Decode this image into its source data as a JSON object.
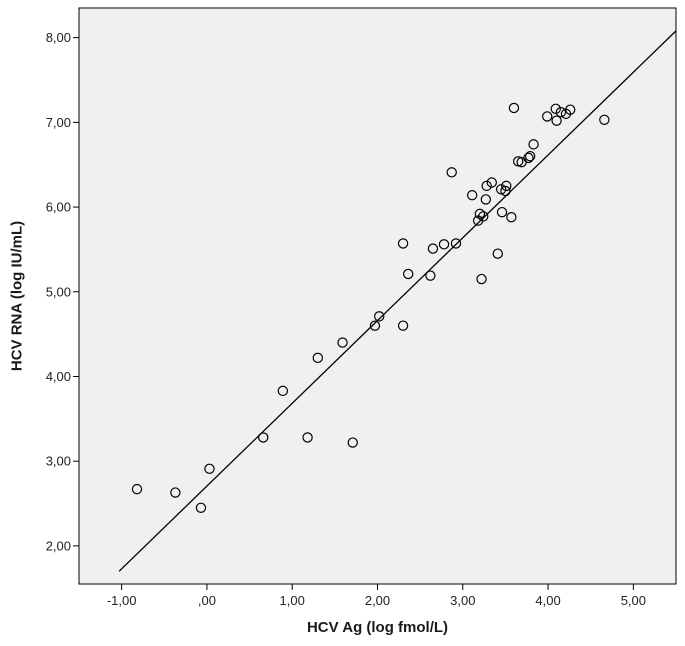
{
  "chart_data": {
    "type": "scatter",
    "title": "",
    "xlabel": "HCV Ag (log fmol/L)",
    "ylabel": "HCV RNA (log IU/mL)",
    "xlim": [
      -1.5,
      5.5
    ],
    "ylim": [
      1.55,
      8.35
    ],
    "xticks": [
      -1,
      0,
      1,
      2,
      3,
      4,
      5
    ],
    "xtick_labels": [
      "-1,00",
      ",00",
      "1,00",
      "2,00",
      "3,00",
      "4,00",
      "5,00"
    ],
    "yticks": [
      2,
      3,
      4,
      5,
      6,
      7,
      8
    ],
    "ytick_labels": [
      "2,00",
      "3,00",
      "4,00",
      "5,00",
      "6,00",
      "7,00",
      "8,00"
    ],
    "grid": false,
    "legend": "none",
    "background_color": "#f0f0f0",
    "marker_color": "#000000",
    "fit_line": {
      "x": [
        -1.03,
        5.5
      ],
      "y": [
        1.7,
        8.08
      ]
    },
    "points": [
      {
        "x": -0.82,
        "y": 2.67
      },
      {
        "x": -0.37,
        "y": 2.63
      },
      {
        "x": -0.07,
        "y": 2.45
      },
      {
        "x": 0.03,
        "y": 2.91
      },
      {
        "x": 0.66,
        "y": 3.28
      },
      {
        "x": 0.89,
        "y": 3.83
      },
      {
        "x": 1.18,
        "y": 3.28
      },
      {
        "x": 1.3,
        "y": 4.22
      },
      {
        "x": 1.59,
        "y": 4.4
      },
      {
        "x": 1.71,
        "y": 3.22
      },
      {
        "x": 1.97,
        "y": 4.6
      },
      {
        "x": 2.02,
        "y": 4.71
      },
      {
        "x": 2.3,
        "y": 4.6
      },
      {
        "x": 2.3,
        "y": 5.57
      },
      {
        "x": 2.36,
        "y": 5.21
      },
      {
        "x": 2.62,
        "y": 5.19
      },
      {
        "x": 2.65,
        "y": 5.51
      },
      {
        "x": 2.78,
        "y": 5.56
      },
      {
        "x": 2.87,
        "y": 6.41
      },
      {
        "x": 2.92,
        "y": 5.57
      },
      {
        "x": 3.11,
        "y": 6.14
      },
      {
        "x": 3.18,
        "y": 5.84
      },
      {
        "x": 3.2,
        "y": 5.92
      },
      {
        "x": 3.22,
        "y": 5.15
      },
      {
        "x": 3.24,
        "y": 5.89
      },
      {
        "x": 3.27,
        "y": 6.09
      },
      {
        "x": 3.28,
        "y": 6.25
      },
      {
        "x": 3.34,
        "y": 6.29
      },
      {
        "x": 3.41,
        "y": 5.45
      },
      {
        "x": 3.45,
        "y": 6.21
      },
      {
        "x": 3.46,
        "y": 5.94
      },
      {
        "x": 3.5,
        "y": 6.19
      },
      {
        "x": 3.51,
        "y": 6.25
      },
      {
        "x": 3.57,
        "y": 5.88
      },
      {
        "x": 3.6,
        "y": 7.17
      },
      {
        "x": 3.65,
        "y": 6.54
      },
      {
        "x": 3.69,
        "y": 6.53
      },
      {
        "x": 3.77,
        "y": 6.58
      },
      {
        "x": 3.79,
        "y": 6.6
      },
      {
        "x": 3.83,
        "y": 6.74
      },
      {
        "x": 3.99,
        "y": 7.07
      },
      {
        "x": 4.09,
        "y": 7.16
      },
      {
        "x": 4.1,
        "y": 7.02
      },
      {
        "x": 4.15,
        "y": 7.12
      },
      {
        "x": 4.21,
        "y": 7.1
      },
      {
        "x": 4.26,
        "y": 7.15
      },
      {
        "x": 4.66,
        "y": 7.03
      }
    ]
  }
}
